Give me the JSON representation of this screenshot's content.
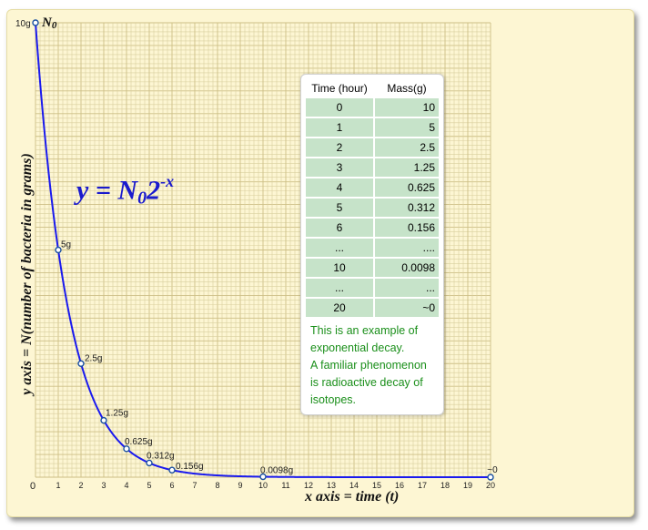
{
  "chart_data": {
    "type": "line",
    "title": "",
    "xlabel": "x axis = time (t)",
    "ylabel": "y axis = N(number of bacteria in grams)",
    "xlim": [
      0,
      20
    ],
    "ylim": [
      0,
      10
    ],
    "x_ticks": [
      "1",
      "2",
      "3",
      "4",
      "5",
      "6",
      "7",
      "8",
      "9",
      "10",
      "11",
      "12",
      "13",
      "14",
      "15",
      "16",
      "17",
      "18",
      "19",
      "20"
    ],
    "origin_label": "0",
    "grid": true,
    "series": [
      {
        "color": "#1a1aee",
        "function": "10*2^-x",
        "x_range": [
          0,
          20
        ]
      }
    ],
    "points": [
      {
        "x": 0,
        "y": 10,
        "label": "10g"
      },
      {
        "x": 1,
        "y": 5,
        "label": "5g"
      },
      {
        "x": 2,
        "y": 2.5,
        "label": "2.5g"
      },
      {
        "x": 3,
        "y": 1.25,
        "label": "1.25g"
      },
      {
        "x": 4,
        "y": 0.625,
        "label": "0.625g"
      },
      {
        "x": 5,
        "y": 0.312,
        "label": "0.312g"
      },
      {
        "x": 6,
        "y": 0.156,
        "label": "0.156g"
      },
      {
        "x": 10,
        "y": 0.0098,
        "label": "0.0098g"
      },
      {
        "x": 20,
        "y": 0,
        "label": "~0"
      }
    ],
    "start_label": {
      "main": "N",
      "sub": "0"
    },
    "formula": {
      "lhs": "y = N",
      "sub": "0",
      "base": "2",
      "exp": "-x"
    }
  },
  "table": {
    "headers": [
      "Time (hour)",
      "Mass(g)"
    ],
    "rows": [
      [
        "0",
        "10"
      ],
      [
        "1",
        "5"
      ],
      [
        "2",
        "2.5"
      ],
      [
        "3",
        "1.25"
      ],
      [
        "4",
        "0.625"
      ],
      [
        "5",
        "0.312"
      ],
      [
        "6",
        "0.156"
      ],
      [
        "...",
        "...."
      ],
      [
        "10",
        "0.0098"
      ],
      [
        "...",
        "..."
      ],
      [
        "20",
        "~0"
      ]
    ]
  },
  "note": {
    "line1": "This is an example of exponential decay.",
    "line2": "A familiar phenomenon is radioactive decay of isotopes."
  },
  "colors": {
    "curve": "#1a1aee",
    "marker_fill": "#ffffff",
    "marker_stroke": "#1a4fa0",
    "grid_minor": "#d9cf9e",
    "grid_major": "#cdbf86",
    "table_cell": "#c6e3c9",
    "note_text": "#1a8f1a",
    "formula_text": "#1a1acd",
    "background": "#fdf6d3"
  }
}
